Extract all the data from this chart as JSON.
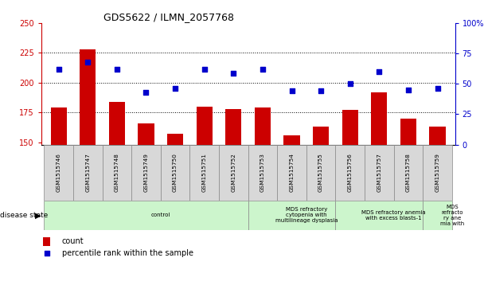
{
  "title": "GDS5622 / ILMN_2057768",
  "samples": [
    "GSM1515746",
    "GSM1515747",
    "GSM1515748",
    "GSM1515749",
    "GSM1515750",
    "GSM1515751",
    "GSM1515752",
    "GSM1515753",
    "GSM1515754",
    "GSM1515755",
    "GSM1515756",
    "GSM1515757",
    "GSM1515758",
    "GSM1515759"
  ],
  "counts": [
    179,
    228,
    184,
    166,
    157,
    180,
    178,
    179,
    156,
    163,
    177,
    192,
    170,
    163
  ],
  "percentiles": [
    62,
    68,
    62,
    43,
    46,
    62,
    59,
    62,
    44,
    44,
    50,
    60,
    45,
    46
  ],
  "ylim_left": [
    148,
    250
  ],
  "ylim_right": [
    0,
    100
  ],
  "yticks_left": [
    150,
    175,
    200,
    225,
    250
  ],
  "yticks_right": [
    0,
    25,
    50,
    75,
    100
  ],
  "bar_color": "#cc0000",
  "scatter_color": "#0000cc",
  "disease_groups": [
    {
      "label": "control",
      "start": 0,
      "end": 7,
      "color": "#ccf5cc"
    },
    {
      "label": "MDS refractory\ncytopenia with\nmultilineage dysplasia",
      "start": 7,
      "end": 10,
      "color": "#ccf5cc"
    },
    {
      "label": "MDS refractory anemia\nwith excess blasts-1",
      "start": 10,
      "end": 13,
      "color": "#ccf5cc"
    },
    {
      "label": "MDS\nrefracto\nry ane\nmia with",
      "start": 13,
      "end": 14,
      "color": "#ccf5cc"
    }
  ],
  "legend_count_label": "count",
  "legend_pct_label": "percentile rank within the sample",
  "xlabel_disease": "disease state",
  "sample_bg": "#d8d8d8"
}
